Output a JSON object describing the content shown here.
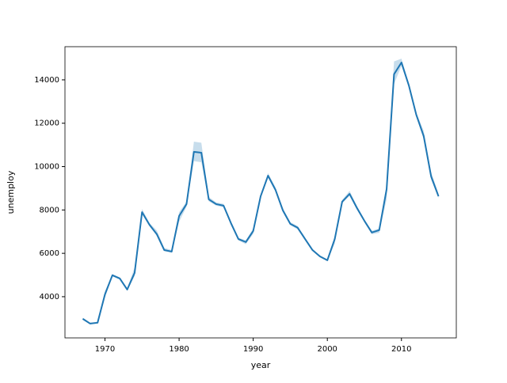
{
  "chart_data": {
    "type": "line",
    "xlabel": "year",
    "ylabel": "unemploy",
    "x": [
      1967,
      1968,
      1969,
      1970,
      1971,
      1972,
      1973,
      1974,
      1975,
      1976,
      1977,
      1978,
      1979,
      1980,
      1981,
      1982,
      1983,
      1984,
      1985,
      1986,
      1987,
      1988,
      1989,
      1990,
      1991,
      1992,
      1993,
      1994,
      1995,
      1996,
      1997,
      1998,
      1999,
      2000,
      2001,
      2002,
      2003,
      2004,
      2005,
      2006,
      2007,
      2008,
      2009,
      2010,
      2011,
      2012,
      2013,
      2014,
      2015
    ],
    "series": [
      {
        "color": "#1f77b4",
        "values": [
          2980,
          2760,
          2800,
          4110,
          4990,
          4840,
          4330,
          5100,
          7900,
          7320,
          6880,
          6150,
          6080,
          7720,
          8270,
          10680,
          10640,
          8490,
          8270,
          8200,
          7390,
          6660,
          6520,
          7030,
          8630,
          9580,
          8930,
          7980,
          7360,
          7180,
          6660,
          6150,
          5860,
          5680,
          6660,
          8380,
          8740,
          8090,
          7500,
          6960,
          7070,
          8960,
          14260,
          14800,
          13740,
          12390,
          11410,
          9550,
          8630
        ],
        "ci_lower": [
          2930,
          2720,
          2760,
          3950,
          4940,
          4790,
          4280,
          4950,
          7800,
          7250,
          6800,
          6100,
          6030,
          7450,
          8150,
          10250,
          10200,
          8400,
          8200,
          8120,
          7300,
          6600,
          6420,
          6900,
          8550,
          9500,
          8850,
          7900,
          7300,
          7100,
          6600,
          6100,
          5820,
          5640,
          6450,
          8300,
          8650,
          8000,
          7440,
          6880,
          6950,
          8500,
          13800,
          14650,
          13650,
          12300,
          11250,
          9400,
          8550
        ],
        "ci_upper": [
          3030,
          2800,
          2840,
          4250,
          5040,
          4890,
          4400,
          5350,
          8050,
          7400,
          7050,
          6250,
          6150,
          7900,
          8380,
          11150,
          11100,
          8600,
          8350,
          8280,
          7480,
          6720,
          6600,
          7150,
          8720,
          9700,
          9050,
          8080,
          7440,
          7260,
          6720,
          6200,
          5900,
          5720,
          6800,
          8460,
          8880,
          8180,
          7560,
          7040,
          7150,
          9200,
          14850,
          14980,
          13850,
          12500,
          11650,
          9750,
          8750
        ]
      }
    ],
    "xlim": [
      1964.6,
      2017.4
    ],
    "xticks": [
      1970,
      1980,
      1990,
      2000,
      2010
    ],
    "ylim": [
      2100,
      15530
    ],
    "yticks": [
      4000,
      6000,
      8000,
      10000,
      12000,
      14000
    ]
  }
}
